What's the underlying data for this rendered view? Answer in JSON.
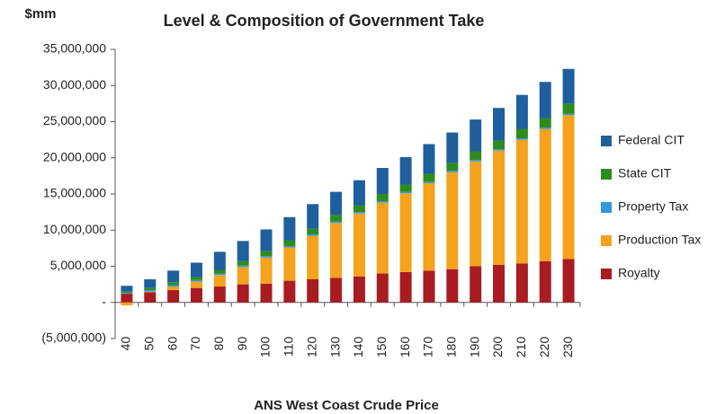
{
  "chart_data": {
    "type": "stacked_bar",
    "title": "Level & Composition of Government Take",
    "y_label": "$mm",
    "x_label": "ANS West Coast Crude Price",
    "categories": [
      "40",
      "50",
      "60",
      "70",
      "80",
      "90",
      "100",
      "110",
      "120",
      "130",
      "140",
      "150",
      "160",
      "170",
      "180",
      "190",
      "200",
      "210",
      "220",
      "230"
    ],
    "series": [
      {
        "name": "Royalty",
        "color": "#a81c22",
        "values": [
          1200000,
          1400000,
          1700000,
          2000000,
          2200000,
          2500000,
          2600000,
          3000000,
          3200000,
          3400000,
          3600000,
          4000000,
          4200000,
          4400000,
          4600000,
          5000000,
          5200000,
          5400000,
          5700000,
          6000000
        ]
      },
      {
        "name": "Production Tax",
        "color": "#f5a21e",
        "values": [
          -400000,
          100000,
          500000,
          900000,
          1600000,
          2400000,
          3600000,
          4600000,
          6000000,
          7600000,
          8700000,
          9800000,
          10900000,
          12100000,
          13400000,
          14500000,
          15800000,
          17100000,
          18300000,
          19900000
        ]
      },
      {
        "name": "Property Tax",
        "color": "#3399dd",
        "values": [
          100000,
          200000,
          200000,
          200000,
          200000,
          200000,
          200000,
          200000,
          200000,
          200000,
          200000,
          200000,
          200000,
          200000,
          200000,
          200000,
          200000,
          200000,
          200000,
          200000
        ]
      },
      {
        "name": "State CIT",
        "color": "#2e8b1e",
        "values": [
          200000,
          300000,
          400000,
          400000,
          500000,
          600000,
          700000,
          800000,
          800000,
          900000,
          900000,
          1000000,
          1000000,
          1100000,
          1100000,
          1200000,
          1200000,
          1300000,
          1300000,
          1400000
        ]
      },
      {
        "name": "Federal CIT",
        "color": "#1f5f9e",
        "values": [
          800000,
          1200000,
          1600000,
          2000000,
          2500000,
          2800000,
          3000000,
          3200000,
          3400000,
          3200000,
          3500000,
          3600000,
          3800000,
          4100000,
          4200000,
          4400000,
          4500000,
          4700000,
          5000000,
          4800000
        ]
      }
    ],
    "ylim": [
      -5000000,
      35000000
    ],
    "yticks": [
      {
        "value": -5000000,
        "label": "(5,000,000)"
      },
      {
        "value": 0,
        "label": "-"
      },
      {
        "value": 5000000,
        "label": "5,000,000"
      },
      {
        "value": 10000000,
        "label": "10,000,000"
      },
      {
        "value": 15000000,
        "label": "15,000,000"
      },
      {
        "value": 20000000,
        "label": "20,000,000"
      },
      {
        "value": 25000000,
        "label": "25,000,000"
      },
      {
        "value": 30000000,
        "label": "30,000,000"
      },
      {
        "value": 35000000,
        "label": "35,000,000"
      }
    ],
    "grid": false,
    "legend": "right"
  }
}
